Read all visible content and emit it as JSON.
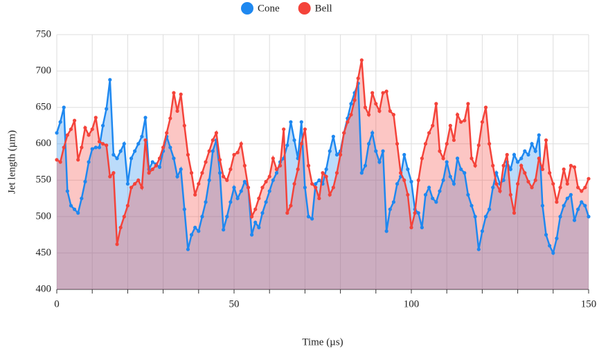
{
  "chart_data": {
    "type": "area",
    "xlabel": "Time (µs)",
    "ylabel": "Jet length (µm)",
    "x": [
      0,
      1,
      2,
      3,
      4,
      5,
      6,
      7,
      8,
      9,
      10,
      11,
      12,
      13,
      14,
      15,
      16,
      17,
      18,
      19,
      20,
      21,
      22,
      23,
      24,
      25,
      26,
      27,
      28,
      29,
      30,
      31,
      32,
      33,
      34,
      35,
      36,
      37,
      38,
      39,
      40,
      41,
      42,
      43,
      44,
      45,
      46,
      47,
      48,
      49,
      50,
      51,
      52,
      53,
      54,
      55,
      56,
      57,
      58,
      59,
      60,
      61,
      62,
      63,
      64,
      65,
      66,
      67,
      68,
      69,
      70,
      71,
      72,
      73,
      74,
      75,
      76,
      77,
      78,
      79,
      80,
      81,
      82,
      83,
      84,
      85,
      86,
      87,
      88,
      89,
      90,
      91,
      92,
      93,
      94,
      95,
      96,
      97,
      98,
      99,
      100,
      101,
      102,
      103,
      104,
      105,
      106,
      107,
      108,
      109,
      110,
      111,
      112,
      113,
      114,
      115,
      116,
      117,
      118,
      119,
      120,
      121,
      122,
      123,
      124,
      125,
      126,
      127,
      128,
      129,
      130,
      131,
      132,
      133,
      134,
      135,
      136,
      137,
      138,
      139,
      140,
      141,
      142,
      143,
      144,
      145,
      146,
      147,
      148,
      149,
      150
    ],
    "series": [
      {
        "name": "Cone",
        "color": "#1e88f0",
        "values": [
          615,
          630,
          650,
          535,
          515,
          510,
          505,
          525,
          548,
          575,
          593,
          595,
          595,
          625,
          648,
          688,
          585,
          580,
          590,
          600,
          545,
          580,
          590,
          600,
          610,
          636,
          565,
          575,
          572,
          568,
          590,
          610,
          595,
          580,
          555,
          565,
          510,
          455,
          475,
          485,
          480,
          500,
          520,
          550,
          590,
          605,
          560,
          482,
          500,
          520,
          540,
          525,
          535,
          548,
          540,
          475,
          492,
          485,
          505,
          520,
          535,
          550,
          560,
          575,
          580,
          598,
          630,
          605,
          580,
          630,
          540,
          500,
          497,
          545,
          550,
          545,
          565,
          590,
          610,
          585,
          590,
          615,
          635,
          655,
          670,
          683,
          560,
          570,
          600,
          615,
          590,
          575,
          590,
          480,
          510,
          520,
          545,
          555,
          585,
          565,
          548,
          510,
          505,
          485,
          530,
          540,
          525,
          520,
          535,
          550,
          575,
          555,
          545,
          580,
          565,
          560,
          530,
          515,
          500,
          455,
          480,
          500,
          510,
          540,
          560,
          545,
          550,
          575,
          565,
          585,
          575,
          580,
          590,
          585,
          600,
          590,
          612,
          515,
          475,
          460,
          450,
          470,
          500,
          515,
          525,
          530,
          495,
          510,
          520,
          515,
          500
        ]
      },
      {
        "name": "Bell",
        "color": "#f4433a",
        "values": [
          578,
          575,
          595,
          612,
          620,
          632,
          578,
          595,
          622,
          612,
          620,
          636,
          603,
          600,
          598,
          555,
          560,
          462,
          485,
          500,
          515,
          540,
          545,
          550,
          540,
          605,
          560,
          565,
          570,
          580,
          595,
          615,
          635,
          670,
          645,
          668,
          625,
          585,
          560,
          530,
          545,
          560,
          575,
          590,
          605,
          615,
          578,
          555,
          550,
          565,
          585,
          588,
          600,
          570,
          540,
          500,
          510,
          525,
          540,
          548,
          555,
          580,
          565,
          570,
          620,
          505,
          515,
          545,
          565,
          600,
          620,
          570,
          545,
          540,
          525,
          560,
          555,
          530,
          540,
          560,
          585,
          615,
          630,
          640,
          660,
          690,
          715,
          650,
          640,
          670,
          655,
          645,
          670,
          672,
          645,
          640,
          600,
          560,
          550,
          530,
          485,
          505,
          550,
          580,
          600,
          615,
          625,
          655,
          590,
          580,
          600,
          625,
          605,
          640,
          630,
          632,
          655,
          580,
          570,
          598,
          630,
          650,
          600,
          570,
          545,
          535,
          570,
          585,
          530,
          505,
          545,
          570,
          560,
          548,
          540,
          550,
          580,
          565,
          605,
          560,
          545,
          520,
          540,
          565,
          545,
          570,
          568,
          540,
          535,
          540,
          552
        ]
      }
    ],
    "xlim": [
      0,
      150
    ],
    "xticks": [
      0,
      50,
      100,
      150
    ],
    "xminorticks": [
      10,
      20,
      30,
      40,
      60,
      70,
      80,
      90,
      110,
      120,
      130,
      140
    ],
    "ylim": [
      400,
      750
    ],
    "yticks": [
      400,
      450,
      500,
      550,
      600,
      650,
      700,
      750
    ],
    "grid": true,
    "legend": "top"
  }
}
